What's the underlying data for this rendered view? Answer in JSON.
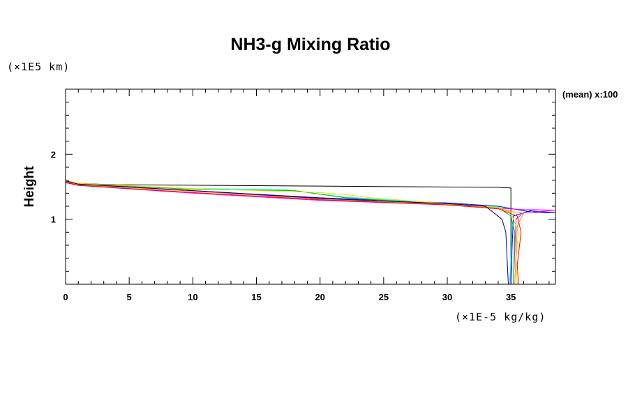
{
  "chart_data": {
    "type": "line",
    "title": "NH3-g Mixing Ratio",
    "ylabel": "Height",
    "y_unit": "(×1E5 km)",
    "x_unit": "(×1E-5 kg/kg)",
    "annotation": "(mean) x:100",
    "xlim": [
      0,
      38.5
    ],
    "ylim": [
      0,
      3
    ],
    "x_ticks": [
      0,
      5,
      10,
      15,
      20,
      25,
      30,
      35
    ],
    "y_ticks": [
      1,
      2
    ],
    "grid": false,
    "series": [
      {
        "color": "#000000",
        "points": [
          [
            0,
            3.0
          ],
          [
            0,
            1.6
          ],
          [
            1,
            1.55
          ],
          [
            4,
            1.53
          ],
          [
            20,
            1.51
          ],
          [
            34,
            1.49
          ],
          [
            35,
            1.48
          ],
          [
            35,
            0.0
          ]
        ]
      },
      {
        "color": "#0000ff",
        "points": [
          [
            0,
            3.0
          ],
          [
            0,
            1.58
          ],
          [
            1,
            1.53
          ],
          [
            10,
            1.44
          ],
          [
            20,
            1.33
          ],
          [
            30,
            1.25
          ],
          [
            34,
            1.2
          ],
          [
            36,
            1.13
          ],
          [
            37,
            1.1
          ],
          [
            38.5,
            1.1
          ],
          [
            36.5,
            1.13
          ],
          [
            35.2,
            1.05
          ],
          [
            35.1,
            0.6
          ],
          [
            35,
            0.0
          ]
        ]
      },
      {
        "color": "#ff00ff",
        "points": [
          [
            0,
            3.0
          ],
          [
            0,
            1.56
          ],
          [
            1,
            1.52
          ],
          [
            10,
            1.4
          ],
          [
            20,
            1.29
          ],
          [
            30,
            1.22
          ],
          [
            34,
            1.17
          ],
          [
            36,
            1.15
          ],
          [
            38.5,
            1.14
          ],
          [
            36,
            1.1
          ],
          [
            35.4,
            1.0
          ],
          [
            35.3,
            0.5
          ],
          [
            35.2,
            0.0
          ]
        ]
      },
      {
        "color": "#00ffff",
        "points": [
          [
            0,
            1.6
          ],
          [
            1,
            1.54
          ],
          [
            10,
            1.47
          ],
          [
            17,
            1.46
          ],
          [
            22,
            1.34
          ],
          [
            30,
            1.24
          ],
          [
            34,
            1.19
          ],
          [
            35,
            1.1
          ],
          [
            35.1,
            0.9
          ],
          [
            35,
            0.4
          ],
          [
            34.9,
            0.0
          ]
        ]
      },
      {
        "color": "#00c000",
        "points": [
          [
            0,
            1.59
          ],
          [
            1,
            1.54
          ],
          [
            10,
            1.46
          ],
          [
            18,
            1.44
          ],
          [
            22,
            1.33
          ],
          [
            30,
            1.23
          ],
          [
            34,
            1.18
          ],
          [
            35,
            1.05
          ],
          [
            35.3,
            0.8
          ],
          [
            35.2,
            0.0
          ]
        ]
      },
      {
        "color": "#ffd700",
        "points": [
          [
            0,
            1.6
          ],
          [
            1,
            1.55
          ],
          [
            10,
            1.47
          ],
          [
            20,
            1.41
          ],
          [
            22,
            1.38
          ],
          [
            24,
            1.33
          ],
          [
            30,
            1.24
          ],
          [
            34,
            1.18
          ],
          [
            35,
            1.1
          ],
          [
            35.6,
            0.8
          ],
          [
            35.4,
            0.4
          ],
          [
            35.5,
            0.0
          ]
        ]
      },
      {
        "color": "#ff8c00",
        "points": [
          [
            0,
            1.58
          ],
          [
            1,
            1.53
          ],
          [
            10,
            1.43
          ],
          [
            20,
            1.31
          ],
          [
            30,
            1.23
          ],
          [
            34,
            1.17
          ],
          [
            35,
            1.12
          ],
          [
            36,
            1.09
          ],
          [
            35.5,
            0.9
          ],
          [
            35.3,
            0.0
          ]
        ]
      },
      {
        "color": "#ff0000",
        "points": [
          [
            0,
            1.57
          ],
          [
            1,
            1.52
          ],
          [
            10,
            1.41
          ],
          [
            20,
            1.3
          ],
          [
            30,
            1.22
          ],
          [
            34,
            1.16
          ],
          [
            35.5,
            1.05
          ],
          [
            35.8,
            0.8
          ],
          [
            35.5,
            0.3
          ],
          [
            35.6,
            0.0
          ]
        ]
      },
      {
        "color": "#000080",
        "points": [
          [
            0,
            1.59
          ],
          [
            1,
            1.54
          ],
          [
            10,
            1.44
          ],
          [
            20,
            1.32
          ],
          [
            30,
            1.24
          ],
          [
            33,
            1.2
          ],
          [
            34.3,
            1.0
          ],
          [
            34.6,
            0.8
          ],
          [
            34.8,
            0.0
          ]
        ]
      }
    ]
  }
}
